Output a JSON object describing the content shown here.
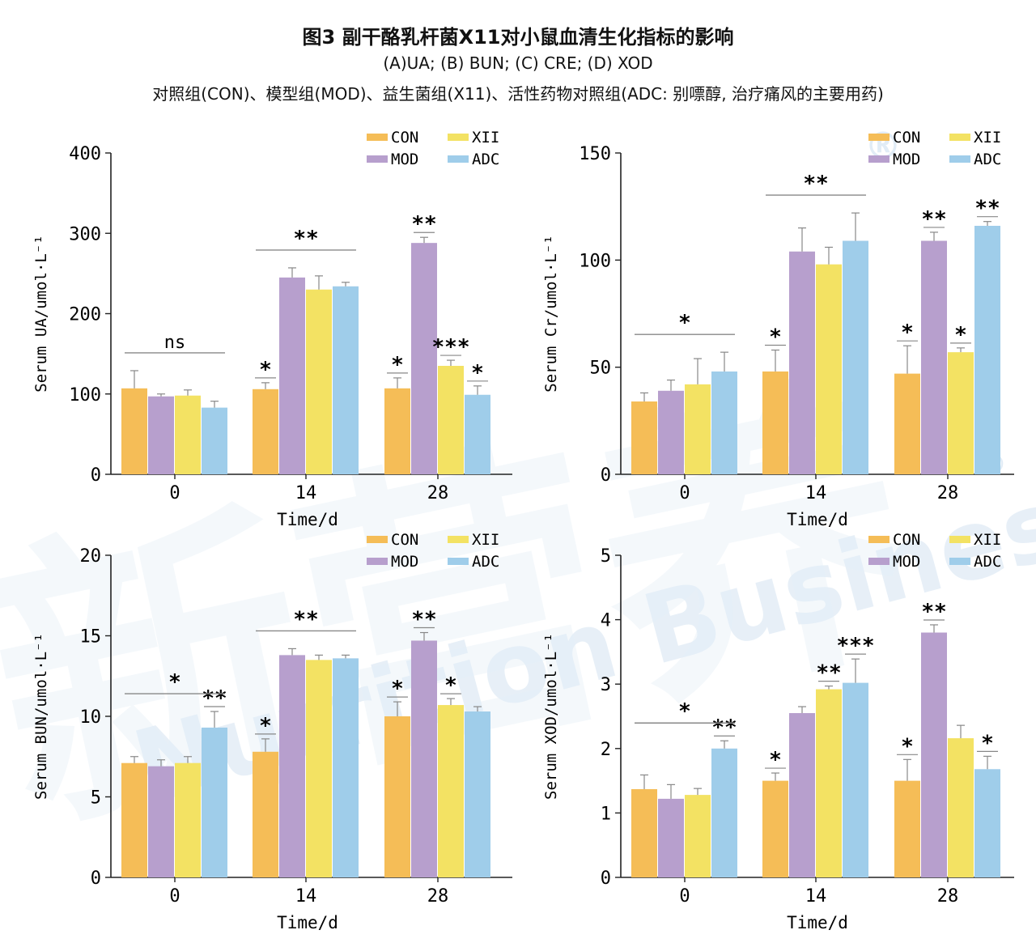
{
  "figure": {
    "title": "图3 副干酪乳杆菌X11对小鼠血清生化指标的影响",
    "subtitle": "(A)UA; (B) BUN; (C) CRE; (D) XOD",
    "note": "对照组(CON)、模型组(MOD)、益生菌组(X11)、活性药物对照组(ADC: 别嘌醇, 治疗痛风的主要用药)"
  },
  "watermark": {
    "text": "Nutrition Business",
    "brand": "新营养",
    "mark": "®"
  },
  "colors": {
    "CON": "#f5bd57",
    "MOD": "#b79fcd",
    "X11": "#f3e263",
    "ADC": "#9fcdea",
    "axis": "#222222",
    "error": "#888888"
  },
  "chart_data": [
    {
      "id": "A",
      "type": "bar",
      "ylabel": "Serum UA/umol·L⁻¹",
      "xlabel": "Time/d",
      "ylim": [
        0,
        400
      ],
      "yticks": [
        0,
        100,
        200,
        300,
        400
      ],
      "categories": [
        "0",
        "14",
        "28"
      ],
      "legend": [
        "CON",
        "XII",
        "MOD",
        "ADC"
      ],
      "legend_position": "top-right",
      "series": [
        {
          "name": "CON",
          "values": [
            107,
            106,
            107
          ],
          "errors": [
            22,
            8,
            13
          ]
        },
        {
          "name": "MOD",
          "values": [
            97,
            245,
            288
          ],
          "errors": [
            3,
            12,
            7
          ]
        },
        {
          "name": "XII",
          "values": [
            98,
            230,
            135
          ],
          "errors": [
            7,
            17,
            7
          ]
        },
        {
          "name": "ADC",
          "values": [
            83,
            234,
            99
          ],
          "errors": [
            8,
            5,
            11
          ]
        }
      ],
      "group_sig": [
        "ns",
        "**",
        ""
      ],
      "bar_sig": [
        [
          "",
          "",
          "",
          ""
        ],
        [
          "*",
          "",
          "",
          ""
        ],
        [
          "*",
          "**",
          "***",
          "*"
        ]
      ]
    },
    {
      "id": "B",
      "type": "bar",
      "ylabel": "Serum Cr/umol·L⁻¹",
      "xlabel": "Time/d",
      "ylim": [
        0,
        150
      ],
      "yticks": [
        0,
        50,
        100,
        150
      ],
      "categories": [
        "0",
        "14",
        "28"
      ],
      "legend": [
        "CON",
        "XII",
        "MOD",
        "ADC"
      ],
      "legend_position": "top-right",
      "series": [
        {
          "name": "CON",
          "values": [
            34,
            48,
            47
          ],
          "errors": [
            4,
            10,
            13
          ]
        },
        {
          "name": "MOD",
          "values": [
            39,
            104,
            109
          ],
          "errors": [
            5,
            11,
            4
          ]
        },
        {
          "name": "XII",
          "values": [
            42,
            98,
            57
          ],
          "errors": [
            12,
            8,
            2
          ]
        },
        {
          "name": "ADC",
          "values": [
            48,
            109,
            116
          ],
          "errors": [
            9,
            13,
            2
          ]
        }
      ],
      "group_sig": [
        "*",
        "**",
        ""
      ],
      "bar_sig": [
        [
          "",
          "",
          "",
          ""
        ],
        [
          "*",
          "",
          "",
          ""
        ],
        [
          "*",
          "**",
          "*",
          "**"
        ]
      ]
    },
    {
      "id": "C",
      "type": "bar",
      "ylabel": "Serum BUN/umol·L⁻¹",
      "xlabel": "Time/d",
      "ylim": [
        0,
        20
      ],
      "yticks": [
        0,
        5,
        10,
        15,
        20
      ],
      "categories": [
        "0",
        "14",
        "28"
      ],
      "legend": [
        "CON",
        "XII",
        "MOD",
        "ADC"
      ],
      "legend_position": "top-right",
      "series": [
        {
          "name": "CON",
          "values": [
            7.1,
            7.8,
            10.0
          ],
          "errors": [
            0.4,
            0.8,
            0.9
          ]
        },
        {
          "name": "MOD",
          "values": [
            6.9,
            13.8,
            14.7
          ],
          "errors": [
            0.4,
            0.4,
            0.5
          ]
        },
        {
          "name": "XII",
          "values": [
            7.1,
            13.5,
            10.7
          ],
          "errors": [
            0.4,
            0.3,
            0.4
          ]
        },
        {
          "name": "ADC",
          "values": [
            9.3,
            13.6,
            10.3
          ],
          "errors": [
            1.0,
            0.2,
            0.3
          ]
        }
      ],
      "group_sig": [
        "*",
        "**",
        ""
      ],
      "bar_sig": [
        [
          "",
          "",
          "",
          "**"
        ],
        [
          "*",
          "",
          "",
          ""
        ],
        [
          "*",
          "**",
          "*",
          ""
        ]
      ]
    },
    {
      "id": "D",
      "type": "bar",
      "ylabel": "Serum XOD/umol·L⁻¹",
      "xlabel": "Time/d",
      "ylim": [
        0,
        5
      ],
      "yticks": [
        0,
        1,
        2,
        3,
        4,
        5
      ],
      "categories": [
        "0",
        "14",
        "28"
      ],
      "legend": [
        "CON",
        "XII",
        "MOD",
        "ADC"
      ],
      "legend_position": "top-right",
      "series": [
        {
          "name": "CON",
          "values": [
            1.37,
            1.5,
            1.5
          ],
          "errors": [
            0.22,
            0.12,
            0.33
          ]
        },
        {
          "name": "MOD",
          "values": [
            1.22,
            2.55,
            3.8
          ],
          "errors": [
            0.22,
            0.1,
            0.12
          ]
        },
        {
          "name": "XII",
          "values": [
            1.28,
            2.92,
            2.16
          ],
          "errors": [
            0.1,
            0.05,
            0.2
          ]
        },
        {
          "name": "ADC",
          "values": [
            2.0,
            3.02,
            1.68
          ],
          "errors": [
            0.12,
            0.37,
            0.2
          ]
        }
      ],
      "group_sig": [
        "*",
        "",
        ""
      ],
      "bar_sig": [
        [
          "",
          "",
          "",
          "**"
        ],
        [
          "*",
          "",
          "**",
          "***"
        ],
        [
          "*",
          "**",
          "",
          "*"
        ]
      ]
    }
  ]
}
